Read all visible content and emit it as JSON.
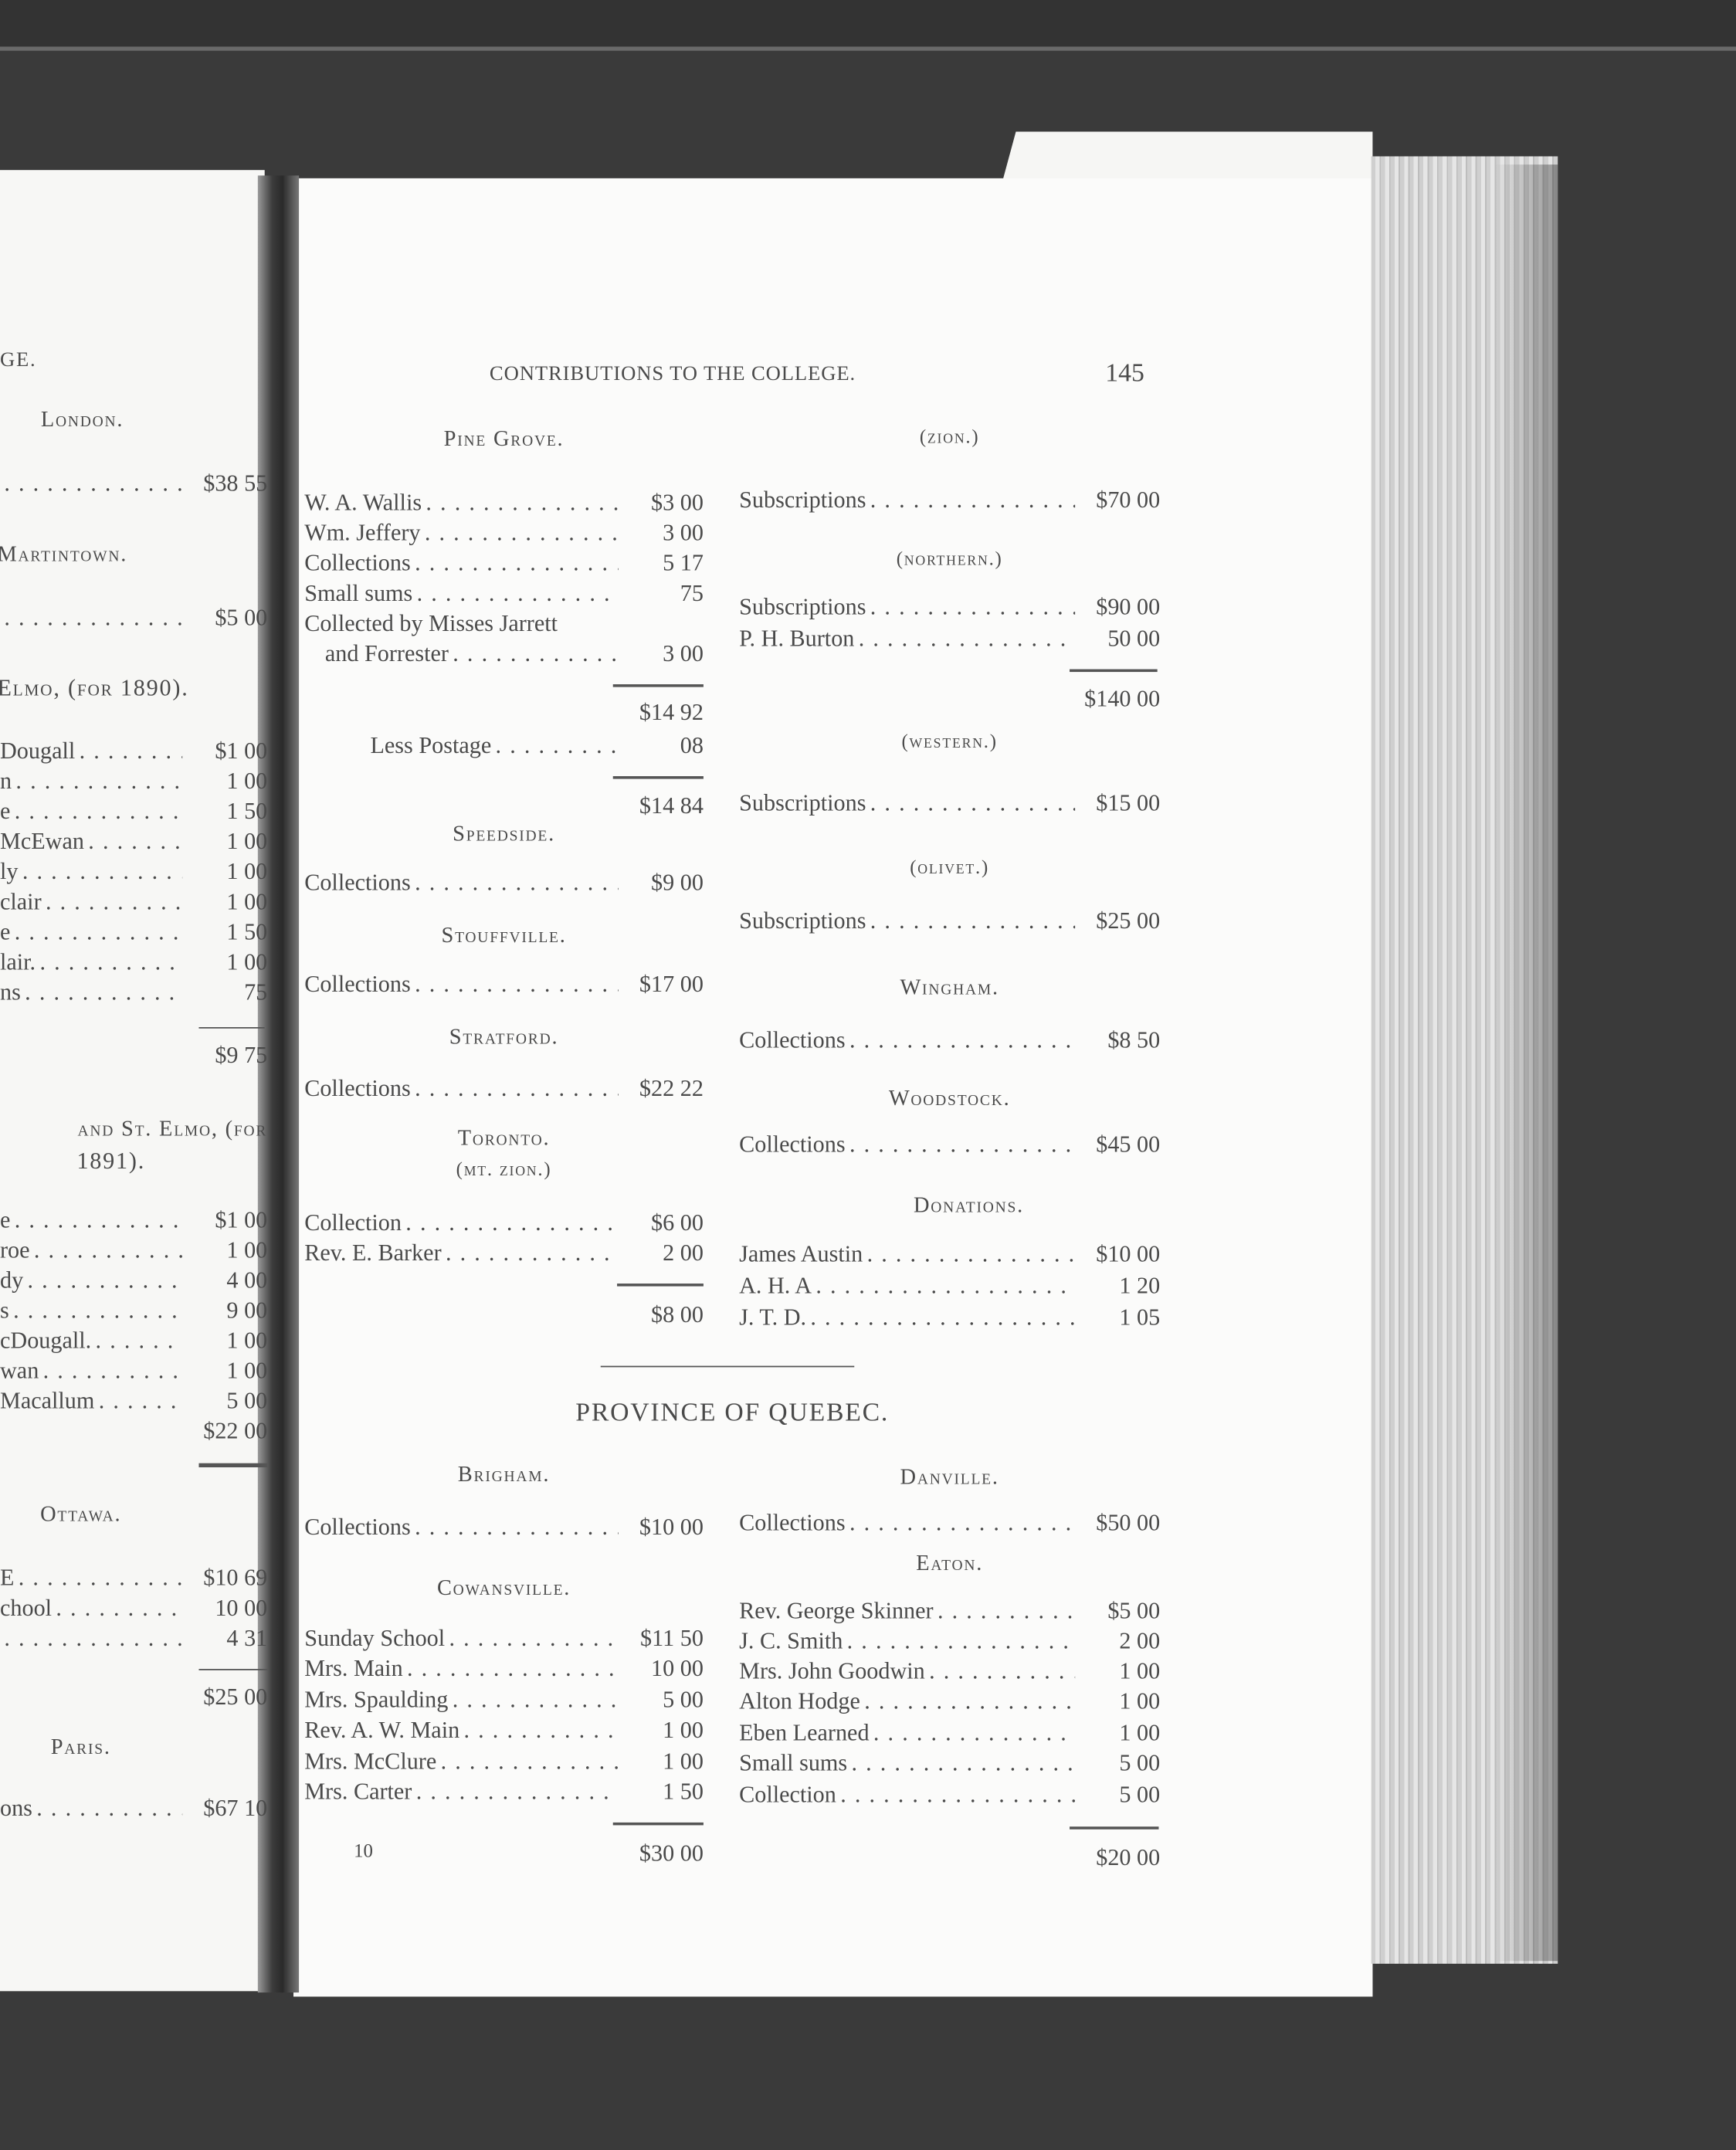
{
  "left_page": {
    "running_head_fragment": "GE.",
    "london": {
      "heading": "London.",
      "entries": [
        {
          "name": "",
          "amount": "$38 55"
        }
      ]
    },
    "martintown": {
      "heading": "Martintown.",
      "entries": [
        {
          "name": "",
          "amount": "$5 00"
        }
      ]
    },
    "st_elmo_1890": {
      "heading": "Elmo, (for 1890).",
      "entries": [
        {
          "name": "Dougall",
          "amount": "$1 00"
        },
        {
          "name": "n",
          "amount": "1 00"
        },
        {
          "name": "e",
          "amount": "1 50"
        },
        {
          "name": "McEwan",
          "amount": "1 00"
        },
        {
          "name": "ly",
          "amount": "1 00"
        },
        {
          "name": "clair",
          "amount": "1 00"
        },
        {
          "name": "e",
          "amount": "1 50"
        },
        {
          "name": "lair.",
          "amount": "1 00"
        },
        {
          "name": "ns",
          "amount": "75"
        }
      ],
      "total": "$9 75"
    },
    "st_elmo_1891": {
      "heading_line1": "and St. Elmo, (for",
      "heading_line2": "1891).",
      "entries": [
        {
          "name": "e",
          "amount": "$1 00"
        },
        {
          "name": "roe",
          "amount": "1 00"
        },
        {
          "name": "dy",
          "amount": "4 00"
        },
        {
          "name": "s",
          "amount": "9 00"
        },
        {
          "name": "cDougall.",
          "amount": "1 00"
        },
        {
          "name": "wan",
          "amount": "1 00"
        },
        {
          "name": "Macallum",
          "amount": "5 00"
        }
      ],
      "total": "$22 00"
    },
    "ottawa": {
      "heading": "Ottawa.",
      "entries": [
        {
          "name": "E",
          "amount": "$10 69"
        },
        {
          "name": "chool",
          "amount": "10 00"
        },
        {
          "name": "",
          "amount": "4 31"
        }
      ],
      "total": "$25 00"
    },
    "paris": {
      "heading": "Paris.",
      "entries": [
        {
          "name": "ons",
          "amount": "$67 10"
        }
      ]
    }
  },
  "right_page": {
    "running_head": "CONTRIBUTIONS TO THE COLLEGE.",
    "page_number": "145",
    "signature_mark": "10",
    "pine_grove": {
      "heading": "Pine Grove.",
      "entries": [
        {
          "name": "W. A. Wallis",
          "amount": "$3 00"
        },
        {
          "name": "Wm. Jeffery",
          "amount": "3 00"
        },
        {
          "name": "Collections",
          "amount": "5 17"
        },
        {
          "name": "Small sums",
          "amount": "75"
        },
        {
          "name": "Collected by Misses Jarrett",
          "amount": ""
        },
        {
          "name": "and Forrester",
          "amount": "3 00"
        }
      ],
      "subtotal": "$14 92",
      "less_label": "Less Postage",
      "less_amount": "08",
      "total": "$14 84"
    },
    "speedside": {
      "heading": "Speedside.",
      "entries": [
        {
          "name": "Collections",
          "amount": "$9 00"
        }
      ]
    },
    "stouffville": {
      "heading": "Stouffville.",
      "entries": [
        {
          "name": "Collections",
          "amount": "$17 00"
        }
      ]
    },
    "stratford": {
      "heading": "Stratford.",
      "entries": [
        {
          "name": "Collections",
          "amount": "$22 22"
        }
      ]
    },
    "toronto": {
      "heading": "Toronto.",
      "subheading": "(mt. zion.)",
      "entries": [
        {
          "name": "Collection",
          "amount": "$6 00"
        },
        {
          "name": "Rev. E. Barker",
          "amount": "2 00"
        }
      ],
      "total": "$8 00"
    },
    "zion": {
      "heading": "(zion.)",
      "entries": [
        {
          "name": "Subscriptions",
          "amount": "$70 00"
        }
      ]
    },
    "northern": {
      "heading": "(northern.)",
      "entries": [
        {
          "name": "Subscriptions",
          "amount": "$90 00"
        },
        {
          "name": "P. H. Burton",
          "amount": "50 00"
        }
      ],
      "total": "$140 00"
    },
    "western": {
      "heading": "(western.)",
      "entries": [
        {
          "name": "Subscriptions",
          "amount": "$15 00"
        }
      ]
    },
    "olivet": {
      "heading": "(olivet.)",
      "entries": [
        {
          "name": "Subscriptions",
          "amount": "$25 00"
        }
      ]
    },
    "wingham": {
      "heading": "Wingham.",
      "entries": [
        {
          "name": "Collections",
          "amount": "$8 50"
        }
      ]
    },
    "woodstock": {
      "heading": "Woodstock.",
      "entries": [
        {
          "name": "Collections",
          "amount": "$45 00"
        }
      ]
    },
    "donations": {
      "heading": "Donations.",
      "entries": [
        {
          "name": "James Austin",
          "amount": "$10 00"
        },
        {
          "name": "A. H. A",
          "amount": "1 20"
        },
        {
          "name": "J. T. D.",
          "amount": "1 05"
        }
      ]
    },
    "province_heading": "PROVINCE OF QUEBEC.",
    "brigham": {
      "heading": "Brigham.",
      "entries": [
        {
          "name": "Collections",
          "amount": "$10 00"
        }
      ]
    },
    "cowansville": {
      "heading": "Cowansville.",
      "entries": [
        {
          "name": "Sunday School",
          "amount": "$11 50"
        },
        {
          "name": "Mrs. Main",
          "amount": "10 00"
        },
        {
          "name": "Mrs. Spaulding",
          "amount": "5 00"
        },
        {
          "name": "Rev. A. W. Main",
          "amount": "1 00"
        },
        {
          "name": "Mrs. McClure",
          "amount": "1 00"
        },
        {
          "name": "Mrs. Carter",
          "amount": "1 50"
        }
      ],
      "total": "$30 00"
    },
    "danville": {
      "heading": "Danville.",
      "entries": [
        {
          "name": "Collections",
          "amount": "$50 00"
        }
      ]
    },
    "eaton": {
      "heading": "Eaton.",
      "entries": [
        {
          "name": "Rev. George Skinner",
          "amount": "$5 00"
        },
        {
          "name": "J. C. Smith",
          "amount": "2 00"
        },
        {
          "name": "Mrs. John Goodwin",
          "amount": "1 00"
        },
        {
          "name": "Alton Hodge",
          "amount": "1 00"
        },
        {
          "name": "Eben Learned",
          "amount": "1 00"
        },
        {
          "name": "Small sums",
          "amount": "5 00"
        },
        {
          "name": "Collection",
          "amount": "5 00"
        }
      ],
      "total": "$20 00"
    }
  }
}
